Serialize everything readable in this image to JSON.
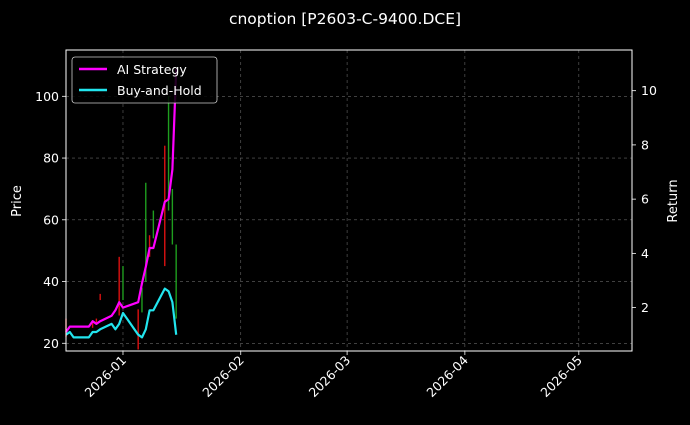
{
  "chart_data": {
    "type": "line",
    "title": "cnoption [P2603-C-9400.DCE]",
    "ylabel_left": "Price",
    "ylabel_right": "Return",
    "xlabel": "",
    "ylim_left": [
      17.5,
      115
    ],
    "ylim_right": [
      0.4,
      11.5
    ],
    "xlim": [
      "2025-12-17",
      "2026-05-15"
    ],
    "x_ticks": [
      "2026-01-01",
      "2026-02-01",
      "2026-03-01",
      "2026-04-01",
      "2026-05-01"
    ],
    "x_tick_labels": [
      "2026-01",
      "2026-02",
      "2026-03",
      "2026-04",
      "2026-05"
    ],
    "y_ticks_left": [
      20,
      40,
      60,
      80,
      100
    ],
    "y_tick_labels_left": [
      "20",
      "40",
      "60",
      "80",
      "100"
    ],
    "y_ticks_right": [
      2,
      4,
      6,
      8,
      10
    ],
    "y_tick_labels_right": [
      "2",
      "4",
      "6",
      "8",
      "10"
    ],
    "grid": true,
    "legend": {
      "placement": "top-left",
      "entries": [
        "AI Strategy",
        "Buy-and-Hold"
      ]
    },
    "series": [
      {
        "name": "AI Strategy",
        "color": "#ff00ff",
        "axis": "right",
        "x": [
          "2025-12-17",
          "2025-12-18",
          "2025-12-19",
          "2025-12-23",
          "2025-12-24",
          "2025-12-25",
          "2025-12-26",
          "2025-12-29",
          "2025-12-30",
          "2025-12-31",
          "2026-01-01",
          "2026-01-05",
          "2026-01-06",
          "2026-01-07",
          "2026-01-08",
          "2026-01-09",
          "2026-01-12",
          "2026-01-13",
          "2026-01-14",
          "2026-01-15"
        ],
        "y": [
          1.1,
          1.3,
          1.3,
          1.3,
          1.5,
          1.4,
          1.5,
          1.7,
          1.9,
          2.2,
          2.0,
          2.2,
          2.9,
          3.5,
          4.2,
          4.2,
          5.9,
          6.0,
          7.1,
          10.8
        ]
      },
      {
        "name": "Buy-and-Hold",
        "color": "#22e5ee",
        "axis": "right",
        "x": [
          "2025-12-17",
          "2025-12-18",
          "2025-12-19",
          "2025-12-23",
          "2025-12-24",
          "2025-12-25",
          "2025-12-26",
          "2025-12-29",
          "2025-12-30",
          "2025-12-31",
          "2026-01-01",
          "2026-01-05",
          "2026-01-06",
          "2026-01-07",
          "2026-01-08",
          "2026-01-09",
          "2026-01-12",
          "2026-01-13",
          "2026-01-14",
          "2026-01-15"
        ],
        "y": [
          1.0,
          1.1,
          0.9,
          0.9,
          1.1,
          1.1,
          1.2,
          1.4,
          1.2,
          1.4,
          1.8,
          1.0,
          0.9,
          1.2,
          1.9,
          1.9,
          2.7,
          2.6,
          2.2,
          1.0
        ]
      }
    ],
    "candles": {
      "axis": "left",
      "up_color": "#1f9e1f",
      "down_color": "#dd1111",
      "items": [
        {
          "x": "2025-12-17",
          "high": 28,
          "low": 22,
          "dir": "down"
        },
        {
          "x": "2025-12-24",
          "high": 27,
          "low": 25,
          "dir": "down"
        },
        {
          "x": "2025-12-25",
          "high": 28,
          "low": 26,
          "dir": "down"
        },
        {
          "x": "2025-12-26",
          "high": 36,
          "low": 34,
          "dir": "down"
        },
        {
          "x": "2025-12-31",
          "high": 48,
          "low": 29,
          "dir": "down"
        },
        {
          "x": "2026-01-01",
          "high": 45,
          "low": 34,
          "dir": "up"
        },
        {
          "x": "2026-01-05",
          "high": 31,
          "low": 18,
          "dir": "down"
        },
        {
          "x": "2026-01-06",
          "high": 38,
          "low": 30,
          "dir": "up"
        },
        {
          "x": "2026-01-07",
          "high": 72,
          "low": 40,
          "dir": "up"
        },
        {
          "x": "2026-01-08",
          "high": 55,
          "low": 48,
          "dir": "down"
        },
        {
          "x": "2026-01-09",
          "high": 63,
          "low": 54,
          "dir": "up"
        },
        {
          "x": "2026-01-12",
          "high": 84,
          "low": 45,
          "dir": "down"
        },
        {
          "x": "2026-01-13",
          "high": 100,
          "low": 63,
          "dir": "up"
        },
        {
          "x": "2026-01-14",
          "high": 70,
          "low": 52,
          "dir": "up"
        },
        {
          "x": "2026-01-15",
          "high": 52,
          "low": 28,
          "dir": "up"
        }
      ]
    }
  }
}
